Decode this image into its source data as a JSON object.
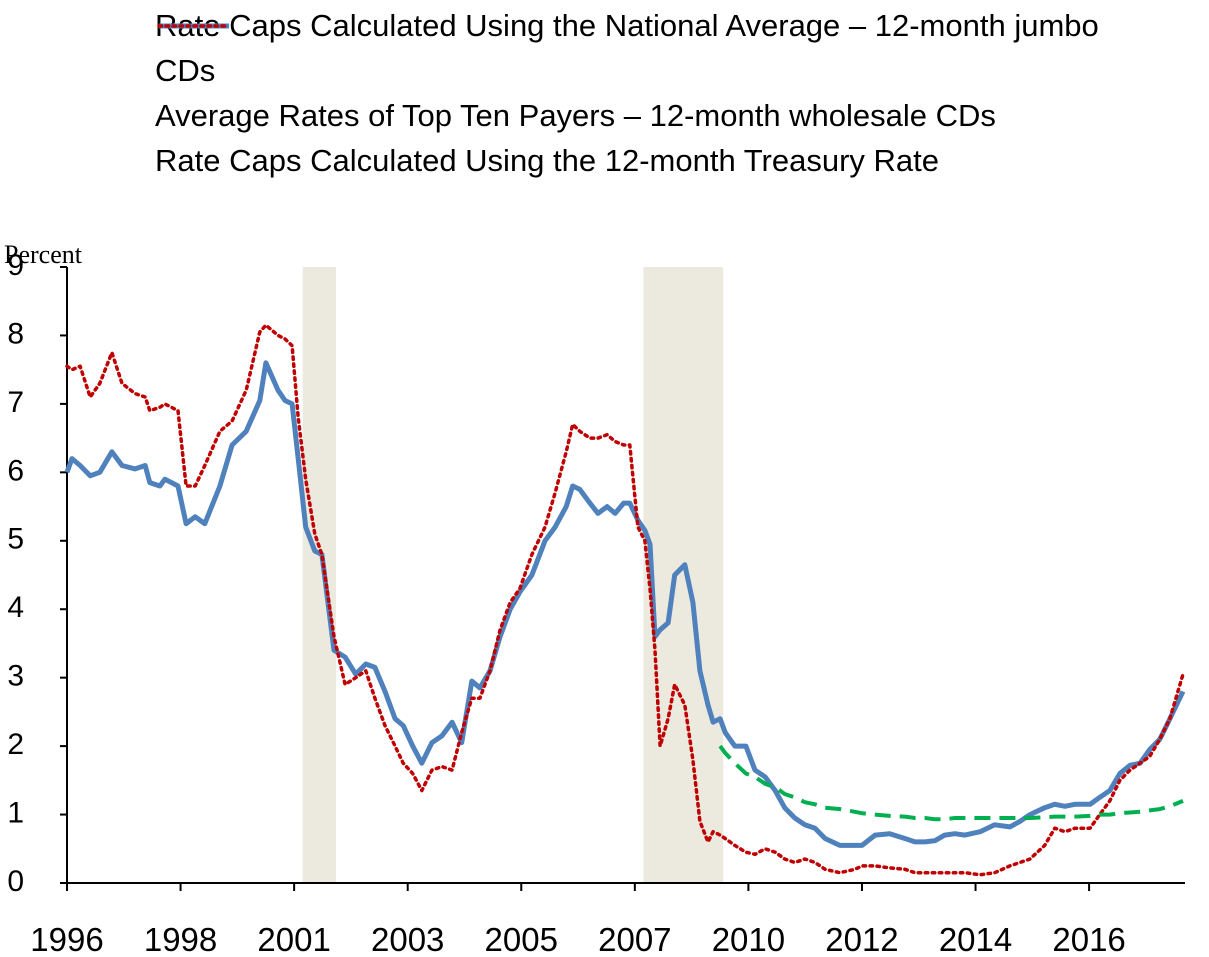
{
  "chart_data": {
    "type": "line",
    "ylabel": "Percent",
    "x": [
      1996.5,
      1996.6,
      1996.76,
      1996.96,
      1997.15,
      1997.39,
      1997.59,
      1997.85,
      1998.05,
      1998.14,
      1998.34,
      1998.44,
      1998.7,
      1998.86,
      1999.04,
      1999.23,
      1999.53,
      1999.77,
      2000.05,
      2000.32,
      2000.44,
      2000.68,
      2000.82,
      2000.96,
      2001.08,
      2001.23,
      2001.41,
      2001.55,
      2001.79,
      2002.01,
      2002.22,
      2002.42,
      2002.6,
      2002.8,
      2003.0,
      2003.16,
      2003.35,
      2003.53,
      2003.73,
      2003.93,
      2004.13,
      2004.32,
      2004.52,
      2004.68,
      2004.88,
      2005.08,
      2005.28,
      2005.47,
      2005.71,
      2005.97,
      2006.17,
      2006.39,
      2006.52,
      2006.66,
      2006.86,
      2007.02,
      2007.2,
      2007.36,
      2007.53,
      2007.65,
      2007.81,
      2007.95,
      2008.05,
      2008.15,
      2008.25,
      2008.41,
      2008.54,
      2008.74,
      2008.9,
      2009.04,
      2009.2,
      2009.3,
      2009.44,
      2009.54,
      2009.73,
      2009.95,
      2010.13,
      2010.33,
      2010.53,
      2010.72,
      2010.92,
      2011.12,
      2011.32,
      2011.52,
      2011.81,
      2012.11,
      2012.25,
      2012.51,
      2012.8,
      2013.1,
      2013.3,
      2013.5,
      2013.7,
      2013.89,
      2014.09,
      2014.29,
      2014.59,
      2014.88,
      2015.18,
      2015.38,
      2015.58,
      2015.87,
      2016.07,
      2016.27,
      2016.47,
      2016.77,
      2016.96,
      2017.16,
      2017.36,
      2017.56,
      2017.76,
      2017.95,
      2018.15,
      2018.35,
      2018.61
    ],
    "xlim": [
      1996.5,
      2018.65
    ],
    "xticks": [
      {
        "value": 1996.5,
        "label": "1996"
      },
      {
        "value": 1998.75,
        "label": "1998"
      },
      {
        "value": 2001,
        "label": "2001"
      },
      {
        "value": 2003.25,
        "label": "2003"
      },
      {
        "value": 2005.5,
        "label": "2005"
      },
      {
        "value": 2007.75,
        "label": "2007"
      },
      {
        "value": 2010,
        "label": "2010"
      },
      {
        "value": 2012.25,
        "label": "2012"
      },
      {
        "value": 2014.5,
        "label": "2014"
      },
      {
        "value": 2016.75,
        "label": "2016"
      }
    ],
    "ylim": [
      0,
      9
    ],
    "yticks": [
      0,
      1,
      2,
      3,
      4,
      5,
      6,
      7,
      8,
      9
    ],
    "shaded_periods": [
      [
        2001.17,
        2001.83
      ],
      [
        2007.92,
        2009.5
      ]
    ],
    "shade_color": "#ece9df",
    "series": [
      {
        "name": "Rate Caps Calculated Using the National Average – 12-month jumbo CDs",
        "color": "#00b050",
        "style": "dashed",
        "values": [
          null,
          null,
          null,
          null,
          null,
          null,
          null,
          null,
          null,
          null,
          null,
          null,
          null,
          null,
          null,
          null,
          null,
          null,
          null,
          null,
          null,
          null,
          null,
          null,
          null,
          null,
          null,
          null,
          null,
          null,
          null,
          null,
          null,
          null,
          null,
          null,
          null,
          null,
          null,
          null,
          null,
          null,
          null,
          null,
          null,
          null,
          null,
          null,
          null,
          null,
          null,
          null,
          null,
          null,
          null,
          null,
          null,
          null,
          null,
          null,
          null,
          null,
          null,
          null,
          null,
          null,
          null,
          null,
          null,
          null,
          null,
          null,
          2.0,
          1.9,
          1.75,
          1.6,
          1.55,
          1.45,
          1.4,
          1.3,
          1.25,
          1.18,
          1.15,
          1.1,
          1.08,
          1.04,
          1.02,
          1.0,
          0.98,
          0.97,
          0.95,
          0.95,
          0.93,
          0.93,
          0.95,
          0.95,
          0.95,
          0.95,
          0.95,
          0.95,
          0.95,
          0.96,
          0.97,
          0.97,
          0.97,
          0.98,
          1.0,
          1.0,
          1.02,
          1.03,
          1.04,
          1.06,
          1.08,
          1.12,
          1.2
        ]
      },
      {
        "name": "Average Rates of Top Ten Payers – 12-month wholesale CDs",
        "color": "#4f81bd",
        "style": "solid",
        "values": [
          6.0,
          6.2,
          6.1,
          5.95,
          6.0,
          6.3,
          6.1,
          6.05,
          6.1,
          5.85,
          5.8,
          5.9,
          5.8,
          5.25,
          5.35,
          5.25,
          5.8,
          6.4,
          6.6,
          7.05,
          7.6,
          7.2,
          7.05,
          7.0,
          6.2,
          5.2,
          4.85,
          4.8,
          3.4,
          3.3,
          3.05,
          3.2,
          3.15,
          2.8,
          2.4,
          2.3,
          2.0,
          1.75,
          2.05,
          2.15,
          2.35,
          2.05,
          2.95,
          2.85,
          3.1,
          3.6,
          4.0,
          4.25,
          4.5,
          5.0,
          5.2,
          5.5,
          5.8,
          5.75,
          5.55,
          5.4,
          5.5,
          5.4,
          5.55,
          5.55,
          5.3,
          5.15,
          4.95,
          3.6,
          3.7,
          3.8,
          4.5,
          4.65,
          4.1,
          3.1,
          2.6,
          2.35,
          2.4,
          2.2,
          2.0,
          2.0,
          1.65,
          1.55,
          1.35,
          1.1,
          0.95,
          0.85,
          0.8,
          0.65,
          0.55,
          0.55,
          0.55,
          0.7,
          0.72,
          0.65,
          0.6,
          0.6,
          0.62,
          0.7,
          0.72,
          0.7,
          0.75,
          0.85,
          0.82,
          0.9,
          1.0,
          1.1,
          1.15,
          1.12,
          1.15,
          1.15,
          1.25,
          1.35,
          1.6,
          1.72,
          1.75,
          1.95,
          2.1,
          2.4,
          2.8
        ]
      },
      {
        "name": "Rate Caps Calculated Using the 12-month Treasury Rate",
        "color": "#c00000",
        "style": "dotted",
        "values": [
          7.55,
          7.5,
          7.55,
          7.1,
          7.3,
          7.75,
          7.3,
          7.15,
          7.1,
          6.9,
          6.95,
          7.0,
          6.9,
          5.8,
          5.8,
          6.1,
          6.6,
          6.75,
          7.2,
          8.05,
          8.15,
          8.0,
          7.95,
          7.85,
          6.8,
          5.9,
          5.1,
          4.8,
          3.6,
          2.9,
          3.0,
          3.1,
          2.7,
          2.3,
          2.0,
          1.75,
          1.6,
          1.35,
          1.65,
          1.7,
          1.65,
          2.2,
          2.7,
          2.7,
          3.1,
          3.7,
          4.1,
          4.3,
          4.8,
          5.2,
          5.7,
          6.3,
          6.7,
          6.6,
          6.5,
          6.5,
          6.55,
          6.45,
          6.4,
          6.4,
          5.2,
          5.0,
          4.3,
          3.4,
          2.0,
          2.4,
          2.9,
          2.6,
          1.8,
          0.9,
          0.6,
          0.75,
          0.7,
          0.65,
          0.55,
          0.45,
          0.42,
          0.5,
          0.45,
          0.35,
          0.3,
          0.35,
          0.3,
          0.2,
          0.15,
          0.2,
          0.25,
          0.25,
          0.22,
          0.2,
          0.15,
          0.15,
          0.15,
          0.15,
          0.15,
          0.15,
          0.12,
          0.15,
          0.25,
          0.3,
          0.35,
          0.55,
          0.8,
          0.75,
          0.8,
          0.8,
          1.0,
          1.2,
          1.5,
          1.65,
          1.75,
          1.85,
          2.1,
          2.4,
          3.05
        ]
      }
    ]
  }
}
